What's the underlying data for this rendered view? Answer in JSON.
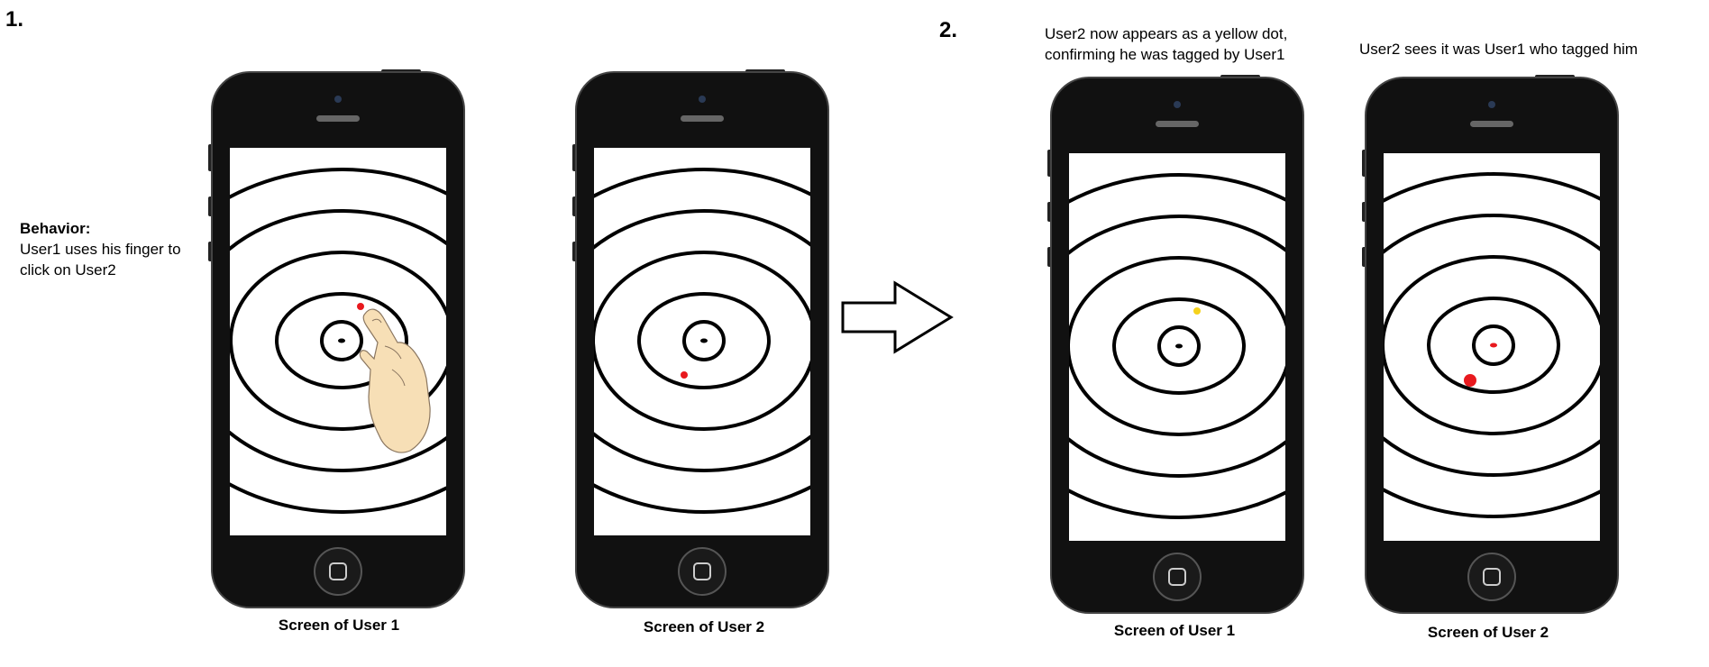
{
  "step1": {
    "number": "1."
  },
  "step2": {
    "number": "2."
  },
  "behavior": {
    "heading": "Behavior:",
    "line1": "User1 uses his finger to",
    "line2": "click on User2"
  },
  "note_yellow": {
    "line1": "User2 now appears as a yellow dot,",
    "line2": "confirming he was tagged by User1"
  },
  "note_sees": {
    "text": "User2 sees it was User1 who tagged him"
  },
  "phones": [
    {
      "caption": "Screen of User 1",
      "dot_color": "#e8191e",
      "dot_size": "small",
      "has_finger": true
    },
    {
      "caption": "Screen of User 2",
      "dot_color": "#e8191e",
      "dot_size": "small",
      "has_finger": false
    },
    {
      "caption": "Screen of User 1",
      "dot_color": "#f5d21c",
      "dot_size": "small",
      "has_finger": false
    },
    {
      "caption": "Screen of User 2",
      "dot_color": "#e8191e",
      "dot_size": "large",
      "has_finger": false,
      "center_mark_color": "#e8191e"
    }
  ],
  "colors": {
    "phone_body": "#111111",
    "screen": "#ffffff",
    "rings": "#000000",
    "finger": "#f7dfb6"
  }
}
